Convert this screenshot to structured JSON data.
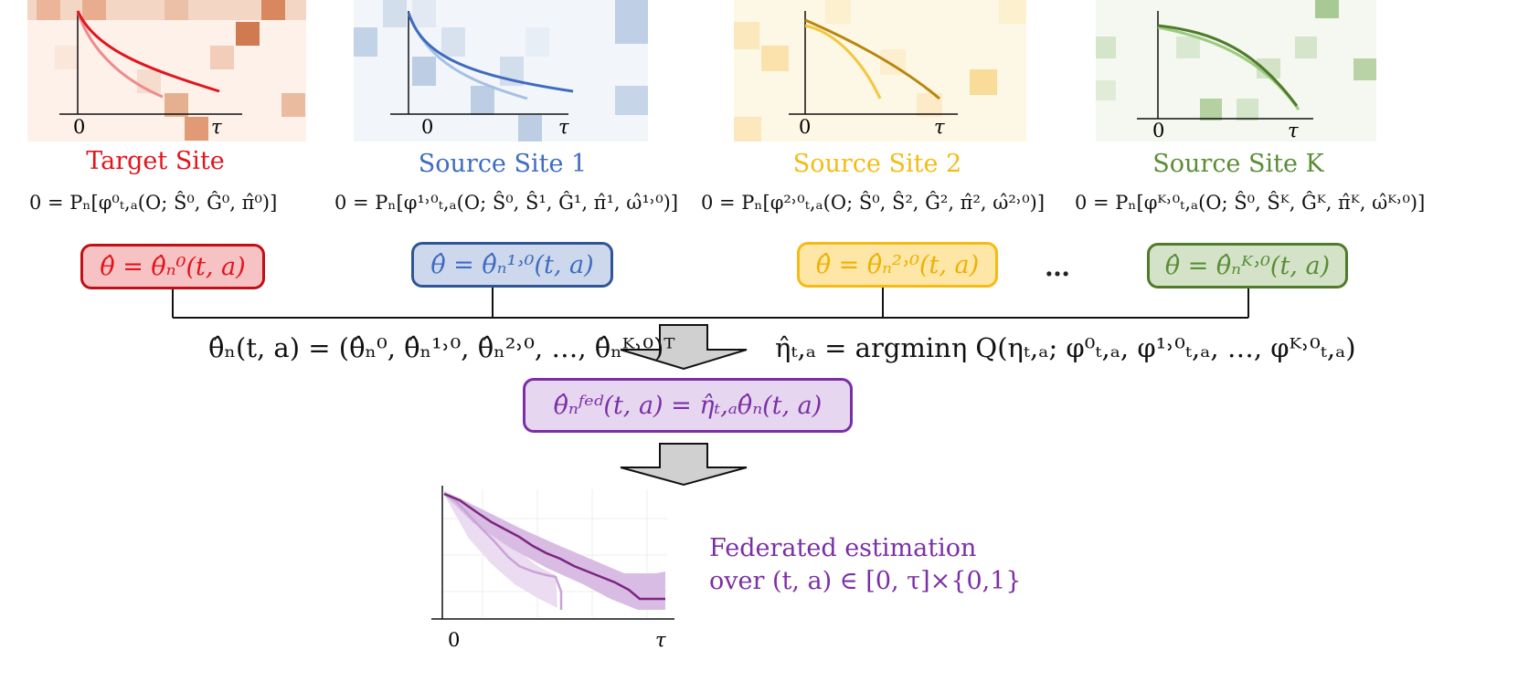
{
  "colors": {
    "target": "#e4141b",
    "source1": "#3f6cc0",
    "source2": "#f5bb14",
    "sourceK": "#5a8d36",
    "federated": "#7b2fa6",
    "target_fill": "#f6c2c4",
    "source1_fill": "#cdd8ec",
    "source2_fill": "#fde6a6",
    "sourceK_fill": "#d4e3c8",
    "fed_fill": "#e6d6ef"
  },
  "sites": [
    {
      "name": "Target Site",
      "equation": "0 = Pₙ[φ⁰ₜ,ₐ(O; Ŝ⁰, Ĝ⁰, π̂⁰)]",
      "estimate": "θ̂ = θ̂ₙ⁰(t, a)",
      "axis_zero": "0",
      "axis_tau": "τ"
    },
    {
      "name": "Source Site 1",
      "equation": "0 = Pₙ[φ¹˒⁰ₜ,ₐ(O; Ŝ⁰, Ŝ¹, Ĝ¹, π̂¹, ω̂¹˒⁰)]",
      "estimate": "θ̂ = θ̂ₙ¹˒⁰(t, a)",
      "axis_zero": "0",
      "axis_tau": "τ"
    },
    {
      "name": "Source Site 2",
      "equation": "0 = Pₙ[φ²˒⁰ₜ,ₐ(O; Ŝ⁰, Ŝ², Ĝ², π̂², ω̂²˒⁰)]",
      "estimate": "θ̂ = θ̂ₙ²˒⁰(t, a)",
      "axis_zero": "0",
      "axis_tau": "τ"
    },
    {
      "name": "Source Site K",
      "equation": "0 = Pₙ[φᴷ˒⁰ₜ,ₐ(O; Ŝ⁰, Ŝᴷ, Ĝᴷ, π̂ᴷ, ω̂ᴷ˒⁰)]",
      "estimate": "θ̂ = θ̂ₙᴷ˒⁰(t, a)",
      "axis_zero": "0",
      "axis_tau": "τ"
    }
  ],
  "ellipsis": "…",
  "theta_vector": "θ̂ₙ(t, a) = (θ̂ₙ⁰, θ̂ₙ¹˒⁰, θ̂ₙ²˒⁰, …, θ̂ₙᴷ˒⁰)ᵀ",
  "eta_argmin": "η̂ₜ,ₐ = argminη Q(ηₜ,ₐ; φ⁰ₜ,ₐ, φ¹˒⁰ₜ,ₐ, …, φᴷ˒⁰ₜ,ₐ)",
  "fed_estimate": "θ̂ₙᶠᵉᵈ(t, a) = η̂ₜ,ₐθ̂ₙ(t, a)",
  "fed_caption_line1": "Federated estimation",
  "fed_caption_line2": "over (t, a) ∈ [0, τ]×{0,1}",
  "bottom_axis_zero": "0",
  "bottom_axis_tau": "τ"
}
